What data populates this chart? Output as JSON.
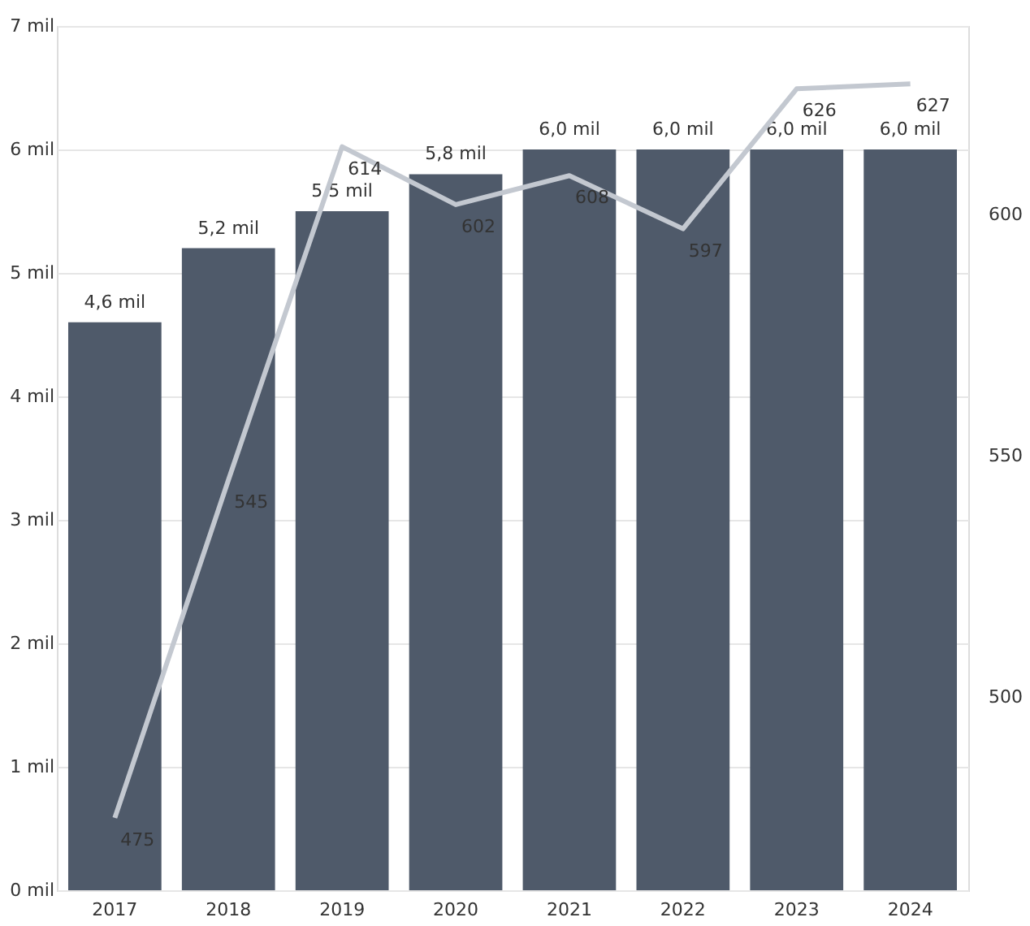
{
  "chart_data": {
    "type": "bar",
    "categories": [
      "2017",
      "2018",
      "2019",
      "2020",
      "2021",
      "2022",
      "2023",
      "2024"
    ],
    "series": [
      {
        "color": "#4f5a6a",
        "values": [
          4.6,
          5.2,
          5.5,
          5.8,
          6.0,
          6.0,
          6.0,
          6.0
        ],
        "value_labels": [
          "4,6 mil",
          "5,2 mil",
          "5,5 mil",
          "5,8 mil",
          "6,0 mil",
          "6,0 mil",
          "6,0 mil",
          "6,0 mil"
        ]
      },
      {
        "type": "line",
        "axis": "y2",
        "color": "#c3c8d0",
        "values": [
          475,
          545,
          614,
          602,
          608,
          597,
          626,
          627
        ],
        "value_labels": [
          "475",
          "545",
          "614",
          "602",
          "608",
          "597",
          "626",
          "627"
        ]
      }
    ],
    "ylim": [
      0,
      7
    ],
    "yticks": [
      {
        "value": 0,
        "label": "0 mil"
      },
      {
        "value": 1,
        "label": "1 mil"
      },
      {
        "value": 2,
        "label": "2 mil"
      },
      {
        "value": 3,
        "label": "3 mil"
      },
      {
        "value": 4,
        "label": "4 mil"
      },
      {
        "value": 5,
        "label": "5 mil"
      },
      {
        "value": 6,
        "label": "6 mil"
      },
      {
        "value": 7,
        "label": "7 mil"
      }
    ],
    "y2lim": [
      460,
      639
    ],
    "y2ticks": [
      500,
      550,
      600
    ],
    "grid": "y",
    "marker": "none",
    "line_style": "solid"
  }
}
